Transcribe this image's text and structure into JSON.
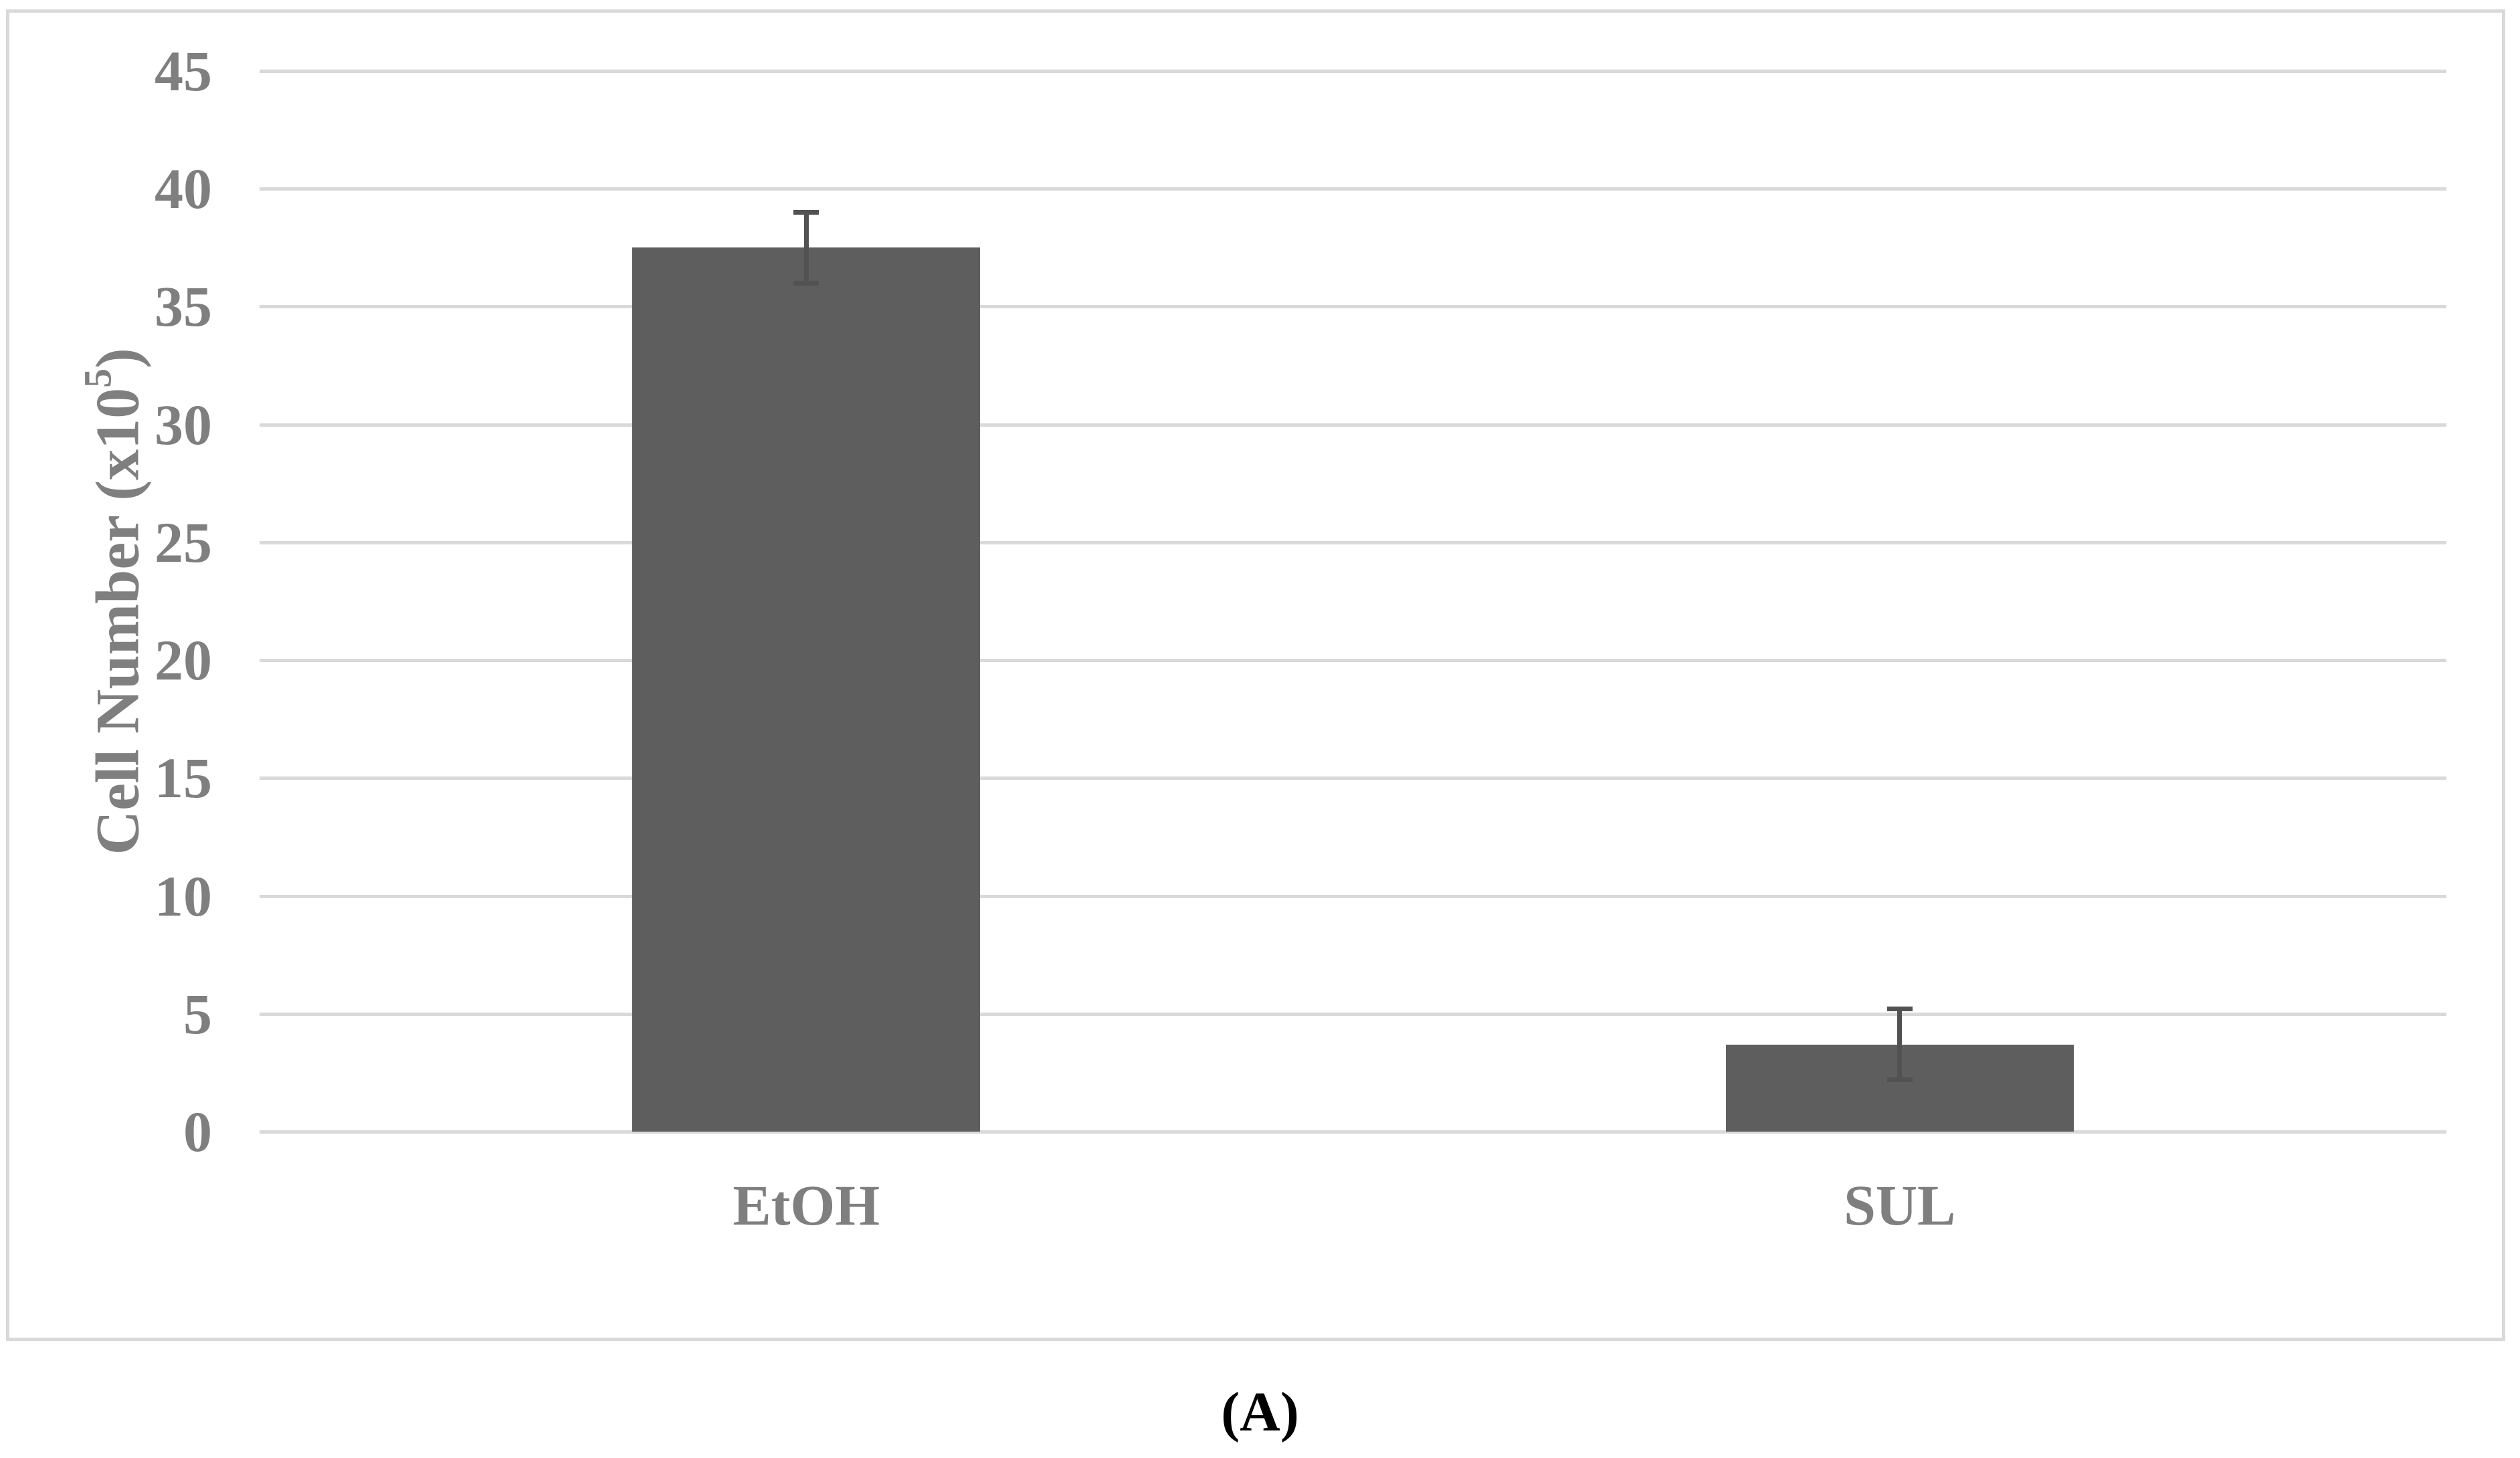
{
  "figure": {
    "caption": "(A)"
  },
  "chart_data": {
    "type": "bar",
    "categories": [
      "EtOH",
      "SUL"
    ],
    "values": [
      37.5,
      3.7
    ],
    "error_bars_plus_minus": [
      1.5,
      1.5
    ],
    "title": "",
    "xlabel": "",
    "ylabel": "Cell Number (x10⁵)",
    "ylabel_prefix": "Cell Number (x10",
    "ylabel_superscript": "5",
    "ylabel_suffix": ")",
    "ylim": [
      0,
      45
    ],
    "yticks": [
      45,
      40,
      35,
      30,
      25,
      20,
      15,
      10,
      5,
      0
    ],
    "grid": true,
    "legend": "none",
    "colors": {
      "bar_fill": "#5e5e5e",
      "error_bar": "#525252",
      "gridline": "#d9d9d9",
      "frame_border": "#d9d9d9",
      "axis_text": "#7f7f7f",
      "caption_text": "#000000"
    }
  }
}
